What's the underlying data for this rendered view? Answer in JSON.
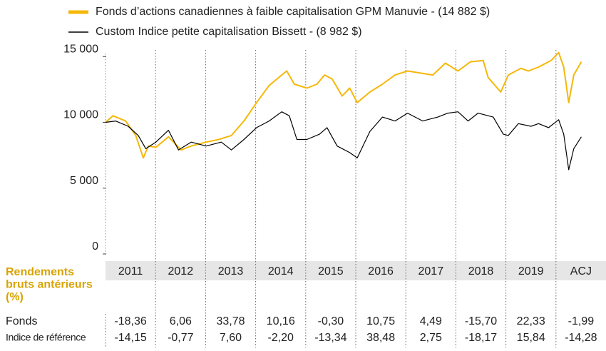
{
  "chart_data": {
    "type": "line",
    "series": [
      {
        "name": "Fonds d’actions canadiennes à faible capitalisation GPM Manuvie - (14 882 $)",
        "color": "#f5b80a",
        "x": [
          2011,
          2011.15,
          2011.4,
          2011.6,
          2011.75,
          2011.85,
          2012,
          2012.25,
          2012.5,
          2012.7,
          2013,
          2013.25,
          2013.5,
          2013.75,
          2014,
          2014.25,
          2014.5,
          2014.6,
          2014.75,
          2015,
          2015.2,
          2015.35,
          2015.5,
          2015.7,
          2015.85,
          2016,
          2016.25,
          2016.5,
          2016.75,
          2017,
          2017.5,
          2017.75,
          2018,
          2018.25,
          2018.5,
          2018.6,
          2018.85,
          2019,
          2019.25,
          2019.4,
          2019.6,
          2019.85,
          2020,
          2020.1,
          2020.2,
          2020.3,
          2020.45
        ],
        "values": [
          10000,
          10500,
          10100,
          9000,
          7300,
          8200,
          8100,
          8900,
          7900,
          8200,
          8500,
          8700,
          9000,
          10100,
          11500,
          12800,
          13600,
          13900,
          12900,
          12600,
          12900,
          13600,
          13300,
          12000,
          12600,
          11500,
          12300,
          12900,
          13600,
          13900,
          13600,
          14500,
          13900,
          14600,
          14700,
          13400,
          12300,
          13600,
          14100,
          13900,
          14200,
          14700,
          15300,
          14200,
          11500,
          13600,
          14600
        ]
      },
      {
        "name": "Custom Indice petite capitalisation Bissett - (8 982 $)",
        "color": "#000000",
        "x": [
          2011,
          2011.2,
          2011.45,
          2011.65,
          2011.8,
          2012,
          2012.25,
          2012.45,
          2012.7,
          2013,
          2013.3,
          2013.5,
          2013.75,
          2014,
          2014.25,
          2014.5,
          2014.65,
          2014.8,
          2015,
          2015.25,
          2015.4,
          2015.6,
          2015.85,
          2016,
          2016.25,
          2016.5,
          2016.75,
          2017,
          2017.3,
          2017.6,
          2017.8,
          2018,
          2018.2,
          2018.4,
          2018.7,
          2018.9,
          2019,
          2019.2,
          2019.45,
          2019.6,
          2019.8,
          2020,
          2020.1,
          2020.2,
          2020.3,
          2020.45
        ],
        "values": [
          10000,
          10100,
          9700,
          9000,
          8000,
          8500,
          9400,
          7900,
          8500,
          8200,
          8500,
          7900,
          8700,
          9600,
          10100,
          10800,
          10500,
          8700,
          8700,
          9100,
          9600,
          8200,
          7700,
          7300,
          9300,
          10400,
          10100,
          10700,
          10100,
          10400,
          10700,
          10800,
          10100,
          10700,
          10400,
          9100,
          9000,
          9900,
          9700,
          9900,
          9600,
          10200,
          9100,
          6400,
          8000,
          8900
        ]
      }
    ],
    "xlim": [
      2011,
      2020.94
    ],
    "ylim": [
      0,
      15500
    ],
    "yticks": [
      0,
      {
        "value": 5000,
        "label": "5 000"
      },
      {
        "value": 10000,
        "label": "10 000"
      },
      {
        "value": 15000,
        "label": "15 000"
      }
    ],
    "table": {
      "title": [
        "Rendements",
        "bruts antérieurs",
        "(%)"
      ],
      "columns": [
        "2011",
        "2012",
        "2013",
        "2014",
        "2015",
        "2016",
        "2017",
        "2018",
        "2019",
        "ACJ"
      ],
      "rows": [
        {
          "label": "Fonds",
          "values": [
            "-18,36",
            "6,06",
            "33,78",
            "10,16",
            "-0,30",
            "10,75",
            "4,49",
            "-15,70",
            "22,33",
            "-1,99"
          ]
        },
        {
          "label": "Indice de référence",
          "values": [
            "-14,15",
            "-0,77",
            "7,60",
            "-2,20",
            "-13,34",
            "38,48",
            "2,75",
            "-18,17",
            "15,84",
            "-14,28"
          ]
        }
      ]
    }
  }
}
